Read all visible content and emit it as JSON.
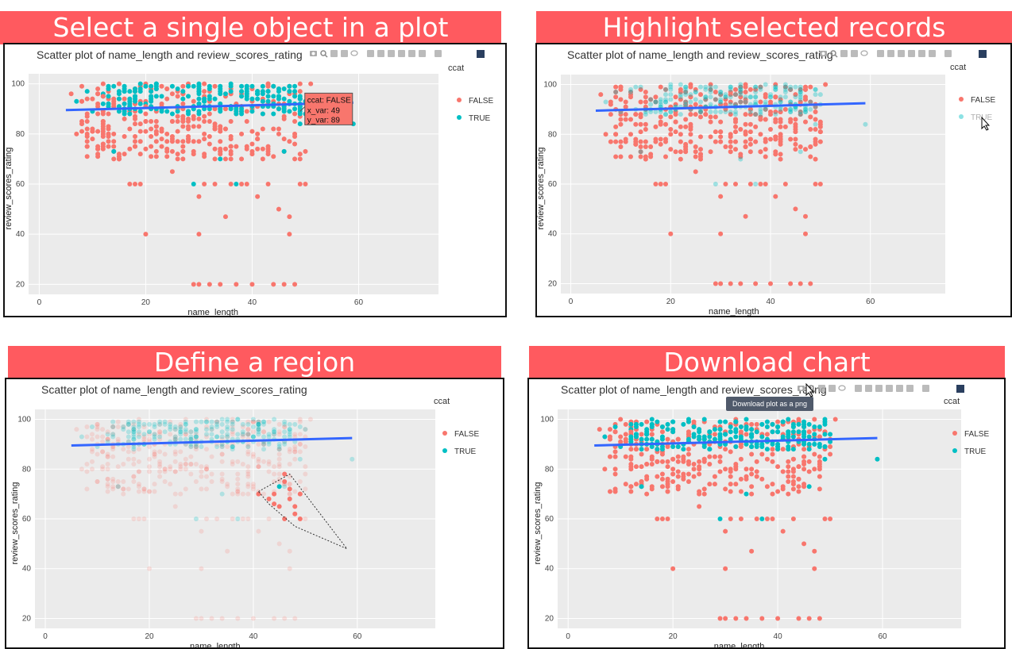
{
  "colors": {
    "banner": "#ff5a5f",
    "false": "#f8766d",
    "true": "#00bfc4",
    "trend": "#3366ff",
    "panel_bg": "#ebebeb"
  },
  "quadrants": [
    {
      "banner": "Select a single object in a plot",
      "title": "Scatter plot of  name_length  and  review_scores_rating",
      "xlabel": "name_length",
      "ylabel": "review_scores_rating",
      "legend_title": "ccat",
      "legend": [
        "FALSE",
        "TRUE"
      ],
      "hover": {
        "l1": "ccat: FALSE",
        "l2": "x_var: 49",
        "l3": "y_var:  89"
      }
    },
    {
      "banner": "Highlight selected records",
      "title": "Scatter plot of  name_length  and  review_scores_rating",
      "xlabel": "name_length",
      "ylabel": "review_scores_rating",
      "legend_title": "ccat",
      "legend": [
        "FALSE",
        "TRUE"
      ]
    },
    {
      "banner": "Define a region",
      "title": "Scatter plot of  name_length  and  review_scores_rating",
      "xlabel": "name_length",
      "ylabel": "review_scores_rating",
      "legend_title": "ccat",
      "legend": [
        "FALSE",
        "TRUE"
      ]
    },
    {
      "banner": "Download chart",
      "title": "Scatter plot of  name_length  and  review_scores_rating",
      "xlabel": "name_length",
      "ylabel": "review_scores_rating",
      "legend_title": "ccat",
      "legend": [
        "FALSE",
        "TRUE"
      ],
      "tooltip": "Download plot as a png"
    }
  ],
  "modebar_icons": [
    "camera-icon",
    "zoom-icon",
    "pan-icon",
    "box-select-icon",
    "lasso-select-icon",
    "zoom-in-icon",
    "zoom-out-icon",
    "autoscale-icon",
    "reset-axes-icon",
    "spike-lines-icon",
    "hover-closest-icon",
    "hover-compare-icon",
    "plotly-logo-icon"
  ],
  "chart_data": {
    "type": "scatter",
    "title": "Scatter plot of  name_length  and  review_scores_rating",
    "xlabel": "name_length",
    "ylabel": "review_scores_rating",
    "legend_title": "ccat",
    "series": [
      {
        "name": "FALSE",
        "points": [
          [
            6,
            96
          ],
          [
            7,
            80
          ],
          [
            8,
            93
          ],
          [
            9,
            80
          ],
          [
            11,
            91
          ],
          [
            12,
            95
          ],
          [
            12,
            80
          ],
          [
            13,
            88
          ],
          [
            14,
            73
          ],
          [
            15,
            70
          ],
          [
            16,
            72
          ],
          [
            17,
            60
          ],
          [
            18,
            60
          ],
          [
            19,
            60
          ],
          [
            20,
            40
          ],
          [
            20,
            91
          ],
          [
            21,
            85
          ],
          [
            22,
            83
          ],
          [
            23,
            75
          ],
          [
            24,
            80
          ],
          [
            25,
            65
          ],
          [
            26,
            70
          ],
          [
            27,
            90
          ],
          [
            28,
            85
          ],
          [
            29,
            20
          ],
          [
            30,
            20
          ],
          [
            30,
            40
          ],
          [
            30,
            55
          ],
          [
            31,
            60
          ],
          [
            32,
            20
          ],
          [
            33,
            60
          ],
          [
            34,
            20
          ],
          [
            35,
            47
          ],
          [
            36,
            60
          ],
          [
            37,
            20
          ],
          [
            38,
            60
          ],
          [
            39,
            60
          ],
          [
            40,
            20
          ],
          [
            41,
            55
          ],
          [
            42,
            70
          ],
          [
            43,
            60
          ],
          [
            44,
            20
          ],
          [
            45,
            50
          ],
          [
            46,
            20
          ],
          [
            47,
            40
          ],
          [
            47,
            47
          ],
          [
            48,
            20
          ],
          [
            49,
            60
          ],
          [
            50,
            60
          ],
          [
            51,
            100
          ]
        ],
        "dense_region": {
          "x": [
            8,
            50
          ],
          "y": [
            70,
            100
          ]
        }
      },
      {
        "name": "TRUE",
        "points": [
          [
            7,
            93
          ],
          [
            9,
            97
          ],
          [
            10,
            89
          ],
          [
            14,
            73
          ],
          [
            18,
            93
          ],
          [
            29,
            60
          ],
          [
            34,
            70
          ],
          [
            37,
            60
          ],
          [
            46,
            73
          ],
          [
            49,
            84
          ],
          [
            59,
            84
          ]
        ],
        "dense_region": {
          "x": [
            12,
            50
          ],
          "y": [
            88,
            100
          ]
        }
      }
    ],
    "trend_line": {
      "x": [
        5,
        59
      ],
      "y": [
        89.5,
        92.5
      ]
    },
    "xlim": [
      -2,
      75
    ],
    "ylim": [
      16,
      104
    ],
    "xticks": [
      0,
      20,
      40,
      60
    ],
    "yticks": [
      20,
      40,
      60,
      80,
      100
    ],
    "grid": true,
    "legend_position": "right"
  }
}
